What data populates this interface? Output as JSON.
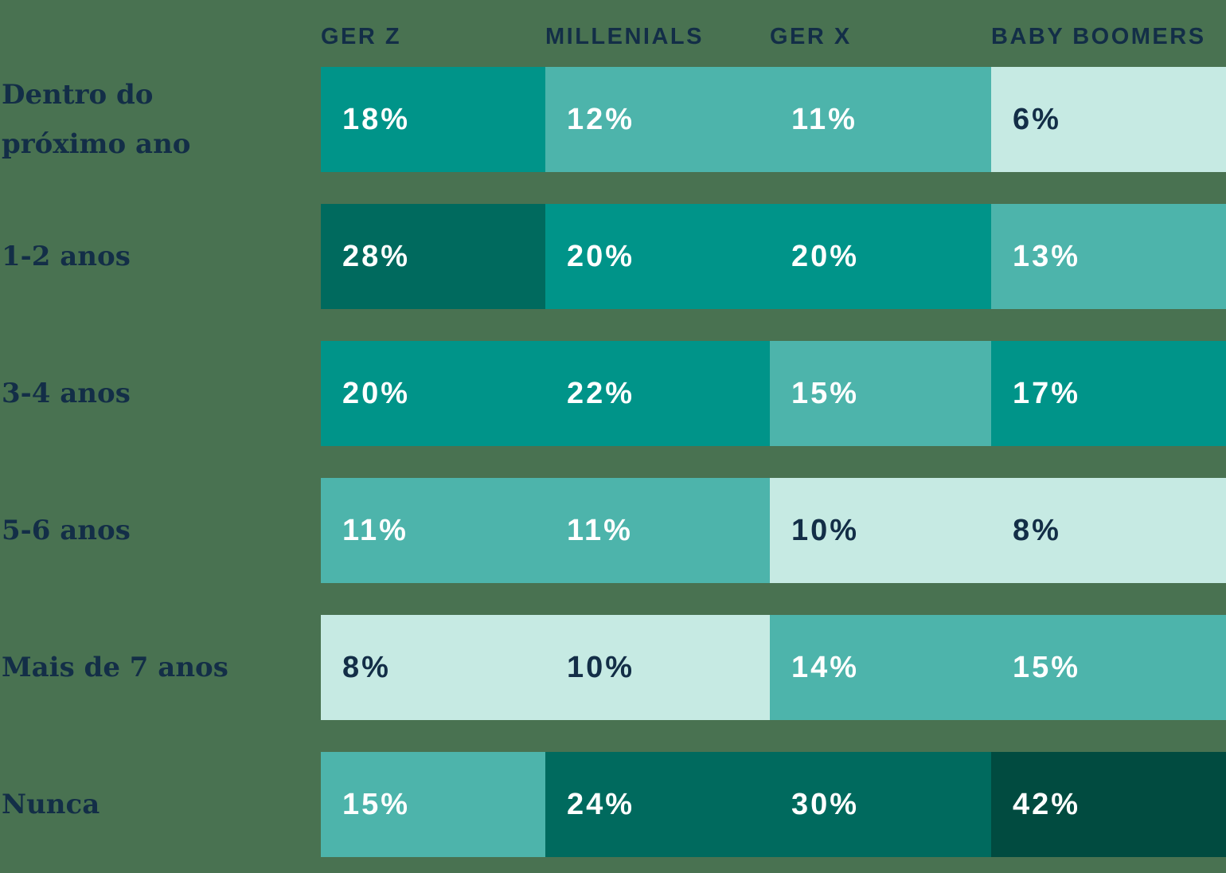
{
  "colors": {
    "background": "#497251",
    "navy": "#132E47",
    "value_text_light": "#FFFFFF"
  },
  "chart_data": {
    "type": "heatmap",
    "title": "",
    "xlabel": "",
    "ylabel": "",
    "legend": "none",
    "grid": false,
    "value_unit": "%",
    "columns": [
      "GER Z",
      "MILLENIALS",
      "GER X",
      "BABY BOOMERS"
    ],
    "palette": {
      "mint": "#C6EAE3",
      "light": "#4DB4AB",
      "medium": "#009489",
      "dark": "#006A5E",
      "darkest": "#014B40"
    },
    "tone_scale_note": "mint <= 10%, light 11-15%, medium 17-22%, dark 24-30%, darkest 42%",
    "rows": [
      {
        "label": "Dentro do próximo ano",
        "values": [
          18,
          12,
          11,
          6
        ],
        "cells": [
          {
            "pct": "18%",
            "tone": "medium"
          },
          {
            "pct": "12%",
            "tone": "light"
          },
          {
            "pct": "11%",
            "tone": "light"
          },
          {
            "pct": "6%",
            "tone": "mint"
          }
        ]
      },
      {
        "label": "1-2 anos",
        "values": [
          28,
          20,
          20,
          13
        ],
        "cells": [
          {
            "pct": "28%",
            "tone": "dark"
          },
          {
            "pct": "20%",
            "tone": "medium"
          },
          {
            "pct": "20%",
            "tone": "medium"
          },
          {
            "pct": "13%",
            "tone": "light"
          }
        ]
      },
      {
        "label": "3-4 anos",
        "values": [
          20,
          22,
          15,
          17
        ],
        "cells": [
          {
            "pct": "20%",
            "tone": "medium"
          },
          {
            "pct": "22%",
            "tone": "medium"
          },
          {
            "pct": "15%",
            "tone": "light"
          },
          {
            "pct": "17%",
            "tone": "medium"
          }
        ]
      },
      {
        "label": "5-6 anos",
        "values": [
          11,
          11,
          10,
          8
        ],
        "cells": [
          {
            "pct": "11%",
            "tone": "light"
          },
          {
            "pct": "11%",
            "tone": "light"
          },
          {
            "pct": "10%",
            "tone": "mint"
          },
          {
            "pct": "8%",
            "tone": "mint"
          }
        ]
      },
      {
        "label": "Mais de 7 anos",
        "values": [
          8,
          10,
          14,
          15
        ],
        "cells": [
          {
            "pct": "8%",
            "tone": "mint"
          },
          {
            "pct": "10%",
            "tone": "mint"
          },
          {
            "pct": "14%",
            "tone": "light"
          },
          {
            "pct": "15%",
            "tone": "light"
          }
        ]
      },
      {
        "label": "Nunca",
        "values": [
          15,
          24,
          30,
          42
        ],
        "cells": [
          {
            "pct": "15%",
            "tone": "light"
          },
          {
            "pct": "24%",
            "tone": "dark"
          },
          {
            "pct": "30%",
            "tone": "dark"
          },
          {
            "pct": "42%",
            "tone": "darkest"
          }
        ]
      }
    ]
  }
}
